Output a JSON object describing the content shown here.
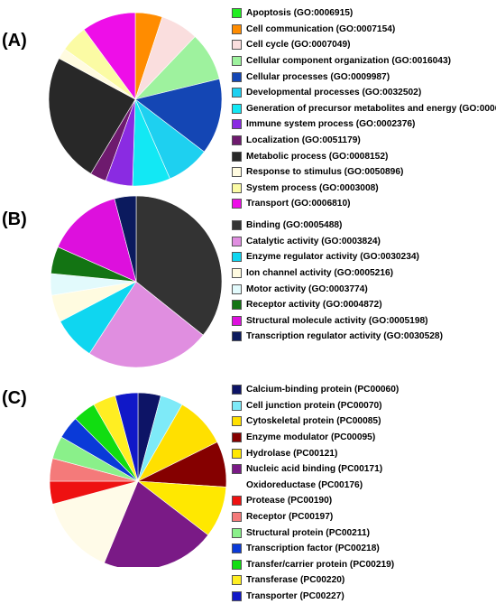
{
  "chart_data": [
    {
      "type": "pie",
      "panel_label": "(A)",
      "legend_position": "right",
      "start_angle_deg": 0,
      "slices": [
        {
          "label": "Apoptosis (GO:0006915)",
          "value": 0,
          "color": "#22ee22"
        },
        {
          "label": "Cell communication (GO:0007154)",
          "value": 5,
          "color": "#ff8c00"
        },
        {
          "label": "Cell cycle (GO:0007049)",
          "value": 7,
          "color": "#fadede"
        },
        {
          "label": "Cellular component organization (GO:0016043)",
          "value": 9,
          "color": "#9ef29e"
        },
        {
          "label": "Cellular processes (GO:0009987)",
          "value": 14,
          "color": "#1446b4"
        },
        {
          "label": "Developmental processes (GO:0032502)",
          "value": 8,
          "color": "#1ed0f0"
        },
        {
          "label": "Generation of precursor metabolites and energy (GO:000609)",
          "value": 7,
          "color": "#12e8f4"
        },
        {
          "label": "Immune system process (GO:0002376)",
          "value": 5,
          "color": "#8a2be2"
        },
        {
          "label": "Localization (GO:0051179)",
          "value": 3,
          "color": "#6e1a6e"
        },
        {
          "label": "Metabolic process (GO:0008152)",
          "value": 24,
          "color": "#282828"
        },
        {
          "label": "Response to stimulus (GO:0050896)",
          "value": 2,
          "color": "#fffbe0"
        },
        {
          "label": "System process (GO:0003008)",
          "value": 5,
          "color": "#fbfba4"
        },
        {
          "label": "Transport (GO:0006810)",
          "value": 10,
          "color": "#ee0ee8"
        }
      ],
      "extra_slice_colors": [
        "#22ee22"
      ]
    },
    {
      "type": "pie",
      "panel_label": "(B)",
      "legend_position": "right",
      "start_angle_deg": 0,
      "slices": [
        {
          "label": "Binding (GO:0005488)",
          "value": 35,
          "color": "#333333"
        },
        {
          "label": "Catalytic activity (GO:0003824)",
          "value": 23,
          "color": "#e08ee0"
        },
        {
          "label": "Enzyme regulator activity (GO:0030234)",
          "value": 8,
          "color": "#0fd6f0"
        },
        {
          "label": "Ion channel activity (GO:0005216)",
          "value": 5,
          "color": "#fffbe0"
        },
        {
          "label": "Motor activity (GO:0003774)",
          "value": 4,
          "color": "#e2fafc"
        },
        {
          "label": "Receptor activity (GO:0004872)",
          "value": 5,
          "color": "#137413"
        },
        {
          "label": "Structural molecule activity (GO:0005198)",
          "value": 14,
          "color": "#dd10dd"
        },
        {
          "label": "Transcription regulator activity (GO:0030528)",
          "value": 4,
          "color": "#0b1a5e"
        }
      ]
    },
    {
      "type": "pie",
      "panel_label": "(C)",
      "legend_position": "right",
      "start_angle_deg": 0,
      "slices": [
        {
          "label": "Calcium-binding protein (PC00060)",
          "value": 4,
          "color": "#0d1466"
        },
        {
          "label": "Cell junction protein (PC00070)",
          "value": 4,
          "color": "#7eeaf8"
        },
        {
          "label": "Cytoskeletal protein (PC00085)",
          "value": 9,
          "color": "#ffe000"
        },
        {
          "label": "Enzyme modulator (PC00095)",
          "value": 8,
          "color": "#850000"
        },
        {
          "label": "Hydrolase (PC00121)",
          "value": 9,
          "color": "#ffe800"
        },
        {
          "label": "Nucleic acid binding (PC00171)",
          "value": 20,
          "color": "#7a1a86"
        },
        {
          "label": "Oxidoreductase (PC00176)",
          "value": 14,
          "color": "#fffbe8",
          "swatch_hidden": true
        },
        {
          "label": "Protease (PC00190)",
          "value": 4,
          "color": "#ee1111"
        },
        {
          "label": "Receptor (PC00197)",
          "value": 4,
          "color": "#f47a7a"
        },
        {
          "label": "Structural protein (PC00211)",
          "value": 4,
          "color": "#8af08a"
        },
        {
          "label": "Transcription factor (PC00218)",
          "value": 4,
          "color": "#0a3ad8"
        },
        {
          "label": "Transfer/carrier protein (PC00219)",
          "value": 4,
          "color": "#11dd11"
        },
        {
          "label": "Transferase (PC00220)",
          "value": 4,
          "color": "#ffee22"
        },
        {
          "label": "Transporter (PC00227)",
          "value": 4,
          "color": "#1018c8"
        }
      ]
    }
  ]
}
